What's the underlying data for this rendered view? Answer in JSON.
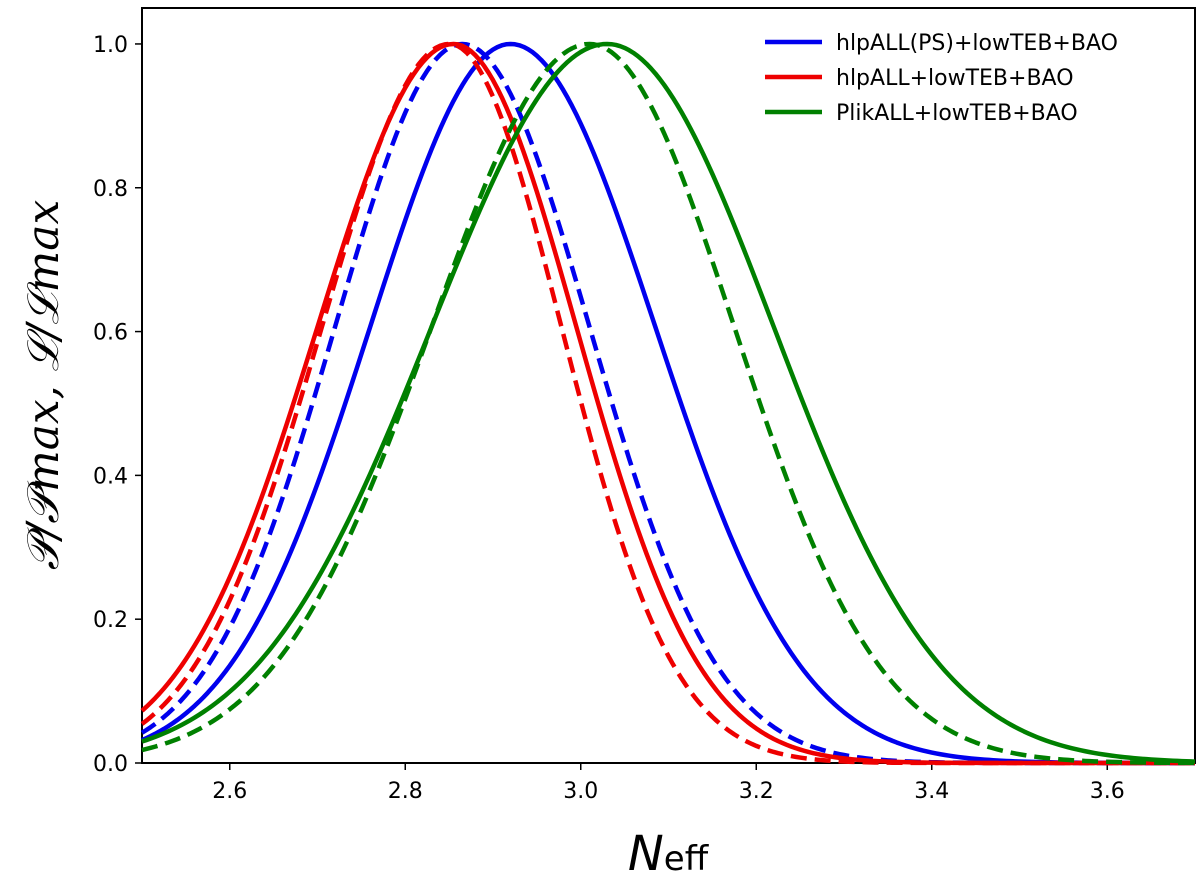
{
  "chart_data": {
    "type": "line",
    "xlabel": "N",
    "xlabel_sub": "eff",
    "ylabel": "𝒫/𝒫max, ℒ/ℒmax",
    "xlim": [
      2.5,
      3.7
    ],
    "ylim": [
      0.0,
      1.05
    ],
    "xticks": [
      "2.6",
      "2.8",
      "3.0",
      "3.2",
      "3.4",
      "3.6"
    ],
    "yticks": [
      "0.0",
      "0.2",
      "0.4",
      "0.6",
      "0.8",
      "1.0"
    ],
    "grid": false,
    "legend_position": "top-right",
    "series": [
      {
        "name": "hlpALL(PS)+lowTEB+BAO",
        "color": "#0000ee",
        "style": "solid",
        "peak": 2.92,
        "sigma_left": 0.16,
        "sigma_right": 0.165
      },
      {
        "name": "",
        "color": "#0000ee",
        "style": "dashed",
        "peak": 2.865,
        "sigma_left": 0.145,
        "sigma_right": 0.145
      },
      {
        "name": "hlpALL+lowTEB+BAO",
        "color": "#ee0000",
        "style": "solid",
        "peak": 2.855,
        "sigma_left": 0.155,
        "sigma_right": 0.14
      },
      {
        "name": "",
        "color": "#ee0000",
        "style": "dashed",
        "peak": 2.85,
        "sigma_left": 0.145,
        "sigma_right": 0.128
      },
      {
        "name": "PlikALL+lowTEB+BAO",
        "color": "#008000",
        "style": "solid",
        "peak": 3.03,
        "sigma_left": 0.2,
        "sigma_right": 0.19
      },
      {
        "name": "",
        "color": "#008000",
        "style": "dashed",
        "peak": 3.01,
        "sigma_left": 0.18,
        "sigma_right": 0.165
      }
    ]
  }
}
